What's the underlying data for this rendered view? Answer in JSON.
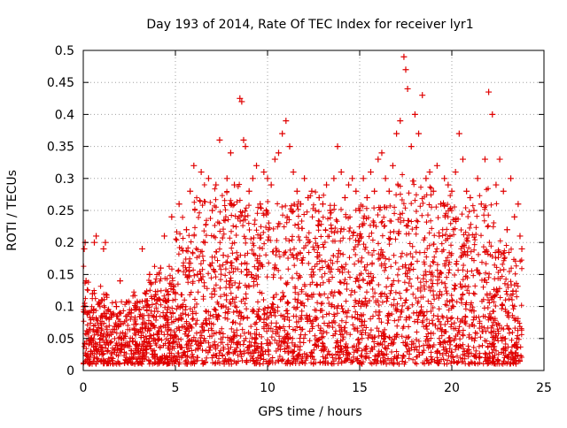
{
  "chart_data": {
    "type": "scatter",
    "title": "Day 193 of 2014, Rate Of TEC Index for receiver lyr1",
    "xlabel": "GPS time / hours",
    "ylabel": "ROTI / TECUs",
    "xlim": [
      0,
      25
    ],
    "ylim": [
      0,
      0.5
    ],
    "x_ticks": [
      0,
      5,
      10,
      15,
      20,
      25
    ],
    "x_tick_labels": [
      "0",
      "5",
      "10",
      "15",
      "20",
      "25"
    ],
    "y_ticks": [
      0,
      0.05,
      0.1,
      0.15,
      0.2,
      0.25,
      0.3,
      0.35,
      0.4,
      0.45,
      0.5
    ],
    "y_tick_labels": [
      "0",
      "0.05",
      "0.1",
      "0.15",
      "0.2",
      "0.25",
      "0.3",
      "0.35",
      "0.4",
      "0.45",
      "0.5"
    ],
    "grid": true,
    "marker": "+",
    "series": [
      {
        "name": "lyr1",
        "color": "#e00000",
        "points": [
          [
            0.05,
            0.19
          ],
          [
            0.1,
            0.2
          ],
          [
            0.15,
            0.14
          ],
          [
            0.2,
            0.09
          ],
          [
            0.3,
            0.05
          ],
          [
            0.4,
            0.03
          ],
          [
            0.5,
            0.12
          ],
          [
            0.6,
            0.2
          ],
          [
            0.7,
            0.21
          ],
          [
            0.8,
            0.06
          ],
          [
            0.9,
            0.04
          ],
          [
            1.0,
            0.11
          ],
          [
            1.1,
            0.19
          ],
          [
            1.2,
            0.2
          ],
          [
            1.3,
            0.03
          ],
          [
            1.4,
            0.08
          ],
          [
            1.5,
            0.02
          ],
          [
            1.6,
            0.06
          ],
          [
            1.8,
            0.1
          ],
          [
            2.0,
            0.14
          ],
          [
            2.2,
            0.05
          ],
          [
            2.4,
            0.04
          ],
          [
            2.6,
            0.09
          ],
          [
            2.8,
            0.08
          ],
          [
            3.0,
            0.06
          ],
          [
            3.2,
            0.19
          ],
          [
            3.4,
            0.12
          ],
          [
            3.6,
            0.15
          ],
          [
            3.8,
            0.07
          ],
          [
            4.0,
            0.11
          ],
          [
            4.2,
            0.16
          ],
          [
            4.4,
            0.21
          ],
          [
            4.6,
            0.08
          ],
          [
            4.8,
            0.24
          ],
          [
            5.0,
            0.12
          ],
          [
            5.2,
            0.26
          ],
          [
            5.4,
            0.1
          ],
          [
            5.6,
            0.22
          ],
          [
            5.8,
            0.28
          ],
          [
            6.0,
            0.32
          ],
          [
            6.2,
            0.15
          ],
          [
            6.4,
            0.31
          ],
          [
            6.6,
            0.2
          ],
          [
            6.8,
            0.3
          ],
          [
            7.0,
            0.25
          ],
          [
            7.2,
            0.29
          ],
          [
            7.4,
            0.36
          ],
          [
            7.6,
            0.18
          ],
          [
            7.8,
            0.3
          ],
          [
            8.0,
            0.34
          ],
          [
            8.2,
            0.29
          ],
          [
            8.5,
            0.425
          ],
          [
            8.6,
            0.42
          ],
          [
            8.7,
            0.36
          ],
          [
            8.8,
            0.35
          ],
          [
            9.0,
            0.28
          ],
          [
            9.2,
            0.3
          ],
          [
            9.4,
            0.32
          ],
          [
            9.6,
            0.26
          ],
          [
            9.8,
            0.31
          ],
          [
            10.0,
            0.3
          ],
          [
            10.2,
            0.29
          ],
          [
            10.4,
            0.33
          ],
          [
            10.6,
            0.34
          ],
          [
            10.8,
            0.37
          ],
          [
            11.0,
            0.39
          ],
          [
            11.2,
            0.35
          ],
          [
            11.4,
            0.31
          ],
          [
            11.6,
            0.28
          ],
          [
            11.8,
            0.26
          ],
          [
            12.0,
            0.3
          ],
          [
            12.2,
            0.27
          ],
          [
            12.4,
            0.28
          ],
          [
            12.6,
            0.25
          ],
          [
            12.8,
            0.27
          ],
          [
            13.0,
            0.26
          ],
          [
            13.2,
            0.29
          ],
          [
            13.4,
            0.25
          ],
          [
            13.6,
            0.3
          ],
          [
            13.8,
            0.35
          ],
          [
            14.0,
            0.31
          ],
          [
            14.2,
            0.27
          ],
          [
            14.4,
            0.29
          ],
          [
            14.6,
            0.3
          ],
          [
            14.8,
            0.28
          ],
          [
            15.0,
            0.25
          ],
          [
            15.2,
            0.3
          ],
          [
            15.4,
            0.27
          ],
          [
            15.6,
            0.31
          ],
          [
            15.8,
            0.28
          ],
          [
            16.0,
            0.33
          ],
          [
            16.2,
            0.34
          ],
          [
            16.4,
            0.3
          ],
          [
            16.6,
            0.28
          ],
          [
            16.8,
            0.32
          ],
          [
            17.0,
            0.37
          ],
          [
            17.2,
            0.39
          ],
          [
            17.4,
            0.49
          ],
          [
            17.5,
            0.47
          ],
          [
            17.6,
            0.44
          ],
          [
            17.8,
            0.35
          ],
          [
            18.0,
            0.4
          ],
          [
            18.2,
            0.37
          ],
          [
            18.4,
            0.43
          ],
          [
            18.6,
            0.3
          ],
          [
            18.8,
            0.31
          ],
          [
            19.0,
            0.28
          ],
          [
            19.2,
            0.32
          ],
          [
            19.4,
            0.26
          ],
          [
            19.6,
            0.3
          ],
          [
            19.8,
            0.29
          ],
          [
            20.0,
            0.28
          ],
          [
            20.2,
            0.31
          ],
          [
            20.4,
            0.37
          ],
          [
            20.6,
            0.33
          ],
          [
            20.8,
            0.28
          ],
          [
            21.0,
            0.27
          ],
          [
            21.2,
            0.25
          ],
          [
            21.4,
            0.3
          ],
          [
            21.6,
            0.26
          ],
          [
            21.8,
            0.33
          ],
          [
            22.0,
            0.435
          ],
          [
            22.2,
            0.4
          ],
          [
            22.4,
            0.29
          ],
          [
            22.6,
            0.33
          ],
          [
            22.8,
            0.28
          ],
          [
            23.0,
            0.22
          ],
          [
            23.2,
            0.3
          ],
          [
            23.4,
            0.24
          ],
          [
            23.6,
            0.26
          ],
          [
            23.7,
            0.21
          ],
          [
            23.8,
            0.19
          ]
        ]
      }
    ]
  }
}
